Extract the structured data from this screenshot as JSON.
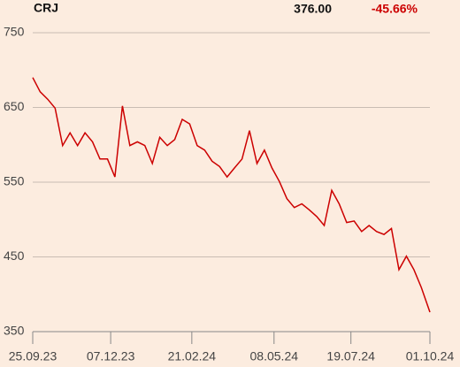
{
  "header": {
    "symbol": "CRJ",
    "price": "376.00",
    "change": "-45.66%"
  },
  "chart_data": {
    "type": "line",
    "x": [
      "25.09.23",
      "02.10.23",
      "09.10.23",
      "16.10.23",
      "23.10.23",
      "30.10.23",
      "06.11.23",
      "13.11.23",
      "20.11.23",
      "27.11.23",
      "04.12.23",
      "11.12.23",
      "18.12.23",
      "25.12.23",
      "01.01.24",
      "08.01.24",
      "15.01.24",
      "22.01.24",
      "29.01.24",
      "05.02.24",
      "12.02.24",
      "19.02.24",
      "26.02.24",
      "04.03.24",
      "11.03.24",
      "18.03.24",
      "25.03.24",
      "01.04.24",
      "08.04.24",
      "15.04.24",
      "22.04.24",
      "29.04.24",
      "06.05.24",
      "13.05.24",
      "20.05.24",
      "27.05.24",
      "03.06.24",
      "10.06.24",
      "17.06.24",
      "24.06.24",
      "01.07.24",
      "08.07.24",
      "15.07.24",
      "22.07.24",
      "29.07.24",
      "05.08.24",
      "12.08.24",
      "19.08.24",
      "26.08.24",
      "02.09.24",
      "09.09.24",
      "16.09.24",
      "23.09.24",
      "01.10.24"
    ],
    "series": [
      {
        "name": "CRJ",
        "color": "#cc0000",
        "values": [
          690,
          671,
          661,
          649,
          599,
          616,
          599,
          616,
          604,
          581,
          581,
          557,
          652,
          599,
          604,
          599,
          575,
          610,
          599,
          607,
          634,
          628,
          599,
          593,
          578,
          571,
          557,
          569,
          581,
          619,
          575,
          593,
          569,
          551,
          528,
          516,
          521,
          513,
          504,
          492,
          539,
          521,
          496,
          498,
          484,
          492,
          484,
          480,
          488,
          433,
          451,
          433,
          409,
          376
        ]
      }
    ],
    "xlim": [
      "25.09.23",
      "01.10.24"
    ],
    "xticks": [
      "25.09.23",
      "07.12.23",
      "21.02.24",
      "08.05.24",
      "19.07.24",
      "01.10.24"
    ],
    "ylim": [
      350,
      750
    ],
    "yticks": [
      350,
      450,
      550,
      650,
      750
    ],
    "grid": true
  }
}
